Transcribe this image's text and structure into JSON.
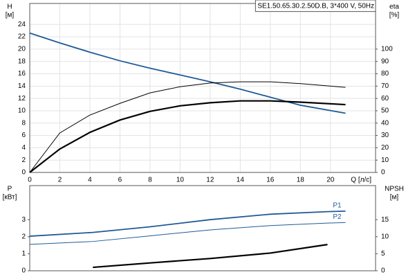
{
  "chart_data": [
    {
      "type": "line",
      "title": "SE1.50.65.30.2.50D.B, 3*400 V, 50Hz",
      "ylabel": [
        "H",
        "[м]"
      ],
      "y2label": [
        "eta",
        "[%]"
      ],
      "xlabel": "Q [л/с]",
      "x": [
        0,
        2,
        4,
        6,
        8,
        10,
        12,
        14,
        16,
        18,
        21
      ],
      "xlim": [
        0,
        23
      ],
      "xticks": [
        0,
        2,
        4,
        6,
        8,
        10,
        12,
        14,
        16,
        18,
        20
      ],
      "ylim": [
        0,
        27.4
      ],
      "yticks": [
        0,
        2,
        4,
        6,
        8,
        10,
        12,
        14,
        16,
        18,
        20,
        22,
        24
      ],
      "y2lim": [
        0,
        137
      ],
      "y2ticks": [
        0,
        10,
        20,
        30,
        40,
        50,
        60,
        70,
        80,
        90,
        100
      ],
      "grid": true,
      "series": [
        {
          "color": "#1f5a96",
          "linewidth": 1.8,
          "values": [
            22.6,
            21,
            19.5,
            18.1,
            16.9,
            15.8,
            14.7,
            13.5,
            12.2,
            10.9,
            9.6
          ]
        },
        {
          "color": "#000000",
          "linewidth": 1,
          "axis": "y2",
          "values": [
            0,
            32,
            46.5,
            56,
            64.5,
            69.5,
            72.5,
            73.5,
            73.5,
            72,
            69
          ]
        },
        {
          "color": "#000000",
          "linewidth": 2.2,
          "axis": "y2",
          "values": [
            0,
            19,
            32.5,
            42.5,
            49.5,
            54,
            56.5,
            58,
            58,
            57,
            55
          ]
        }
      ]
    },
    {
      "type": "line",
      "ylabel": [
        "P",
        "[кВт]"
      ],
      "y2label": [
        "NPSH",
        "[м]"
      ],
      "x": [
        0,
        4.2,
        8,
        12,
        16,
        19.8,
        21
      ],
      "xlim": [
        0,
        23
      ],
      "ylim": [
        0,
        5
      ],
      "yticks": [
        0,
        1,
        2,
        3
      ],
      "y2lim": [
        0,
        25
      ],
      "y2ticks": [
        0,
        5,
        10,
        15
      ],
      "grid": false,
      "series": [
        {
          "name": "P1",
          "color": "#1f5a96",
          "linewidth": 1.8,
          "values": [
            2.03,
            2.25,
            2.58,
            3.0,
            3.32,
            3.47,
            3.5
          ]
        },
        {
          "name": "P2",
          "color": "#1f5a96",
          "linewidth": 1,
          "values": [
            1.55,
            1.72,
            2.05,
            2.4,
            2.65,
            2.8,
            2.83
          ]
        },
        {
          "color": "#000000",
          "linewidth": 2.2,
          "axis": "y2",
          "values": [
            null,
            1.0,
            2.3,
            3.6,
            5.2,
            7.7,
            null
          ]
        }
      ]
    }
  ]
}
